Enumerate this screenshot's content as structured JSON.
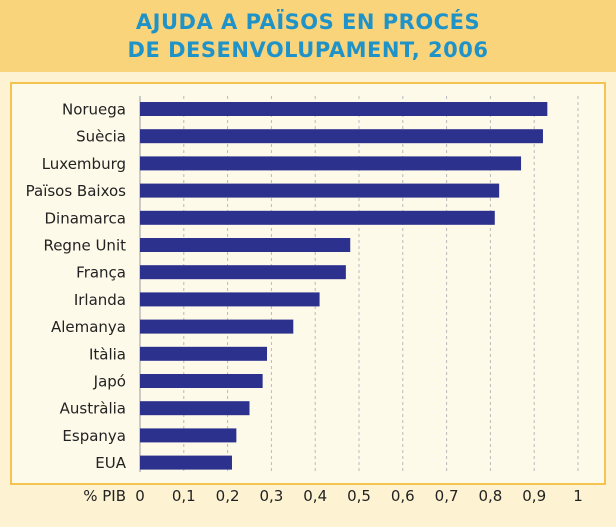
{
  "chart_data": {
    "type": "bar",
    "orientation": "horizontal",
    "title": [
      "AJUDA A PAÏSOS EN PROCÉS",
      "DE DESENVOLUPAMENT, 2006"
    ],
    "xlabel": "% PIB",
    "xlim": [
      0,
      1
    ],
    "x_ticks": [
      "0",
      "0,1",
      "0,2",
      "0,3",
      "0,4",
      "0,5",
      "0,6",
      "0,7",
      "0,8",
      "0,9",
      "1"
    ],
    "grid": "vertical-dashed",
    "bar_color": "#2b318d",
    "categories": [
      "Noruega",
      "Suècia",
      "Luxemburg",
      "Països Baixos",
      "Dinamarca",
      "Regne Unit",
      "França",
      "Irlanda",
      "Alemanya",
      "Itàlia",
      "Japó",
      "Austràlia",
      "Espanya",
      "EUA"
    ],
    "values": [
      0.93,
      0.92,
      0.87,
      0.82,
      0.81,
      0.48,
      0.47,
      0.41,
      0.35,
      0.29,
      0.28,
      0.25,
      0.22,
      0.21
    ]
  }
}
